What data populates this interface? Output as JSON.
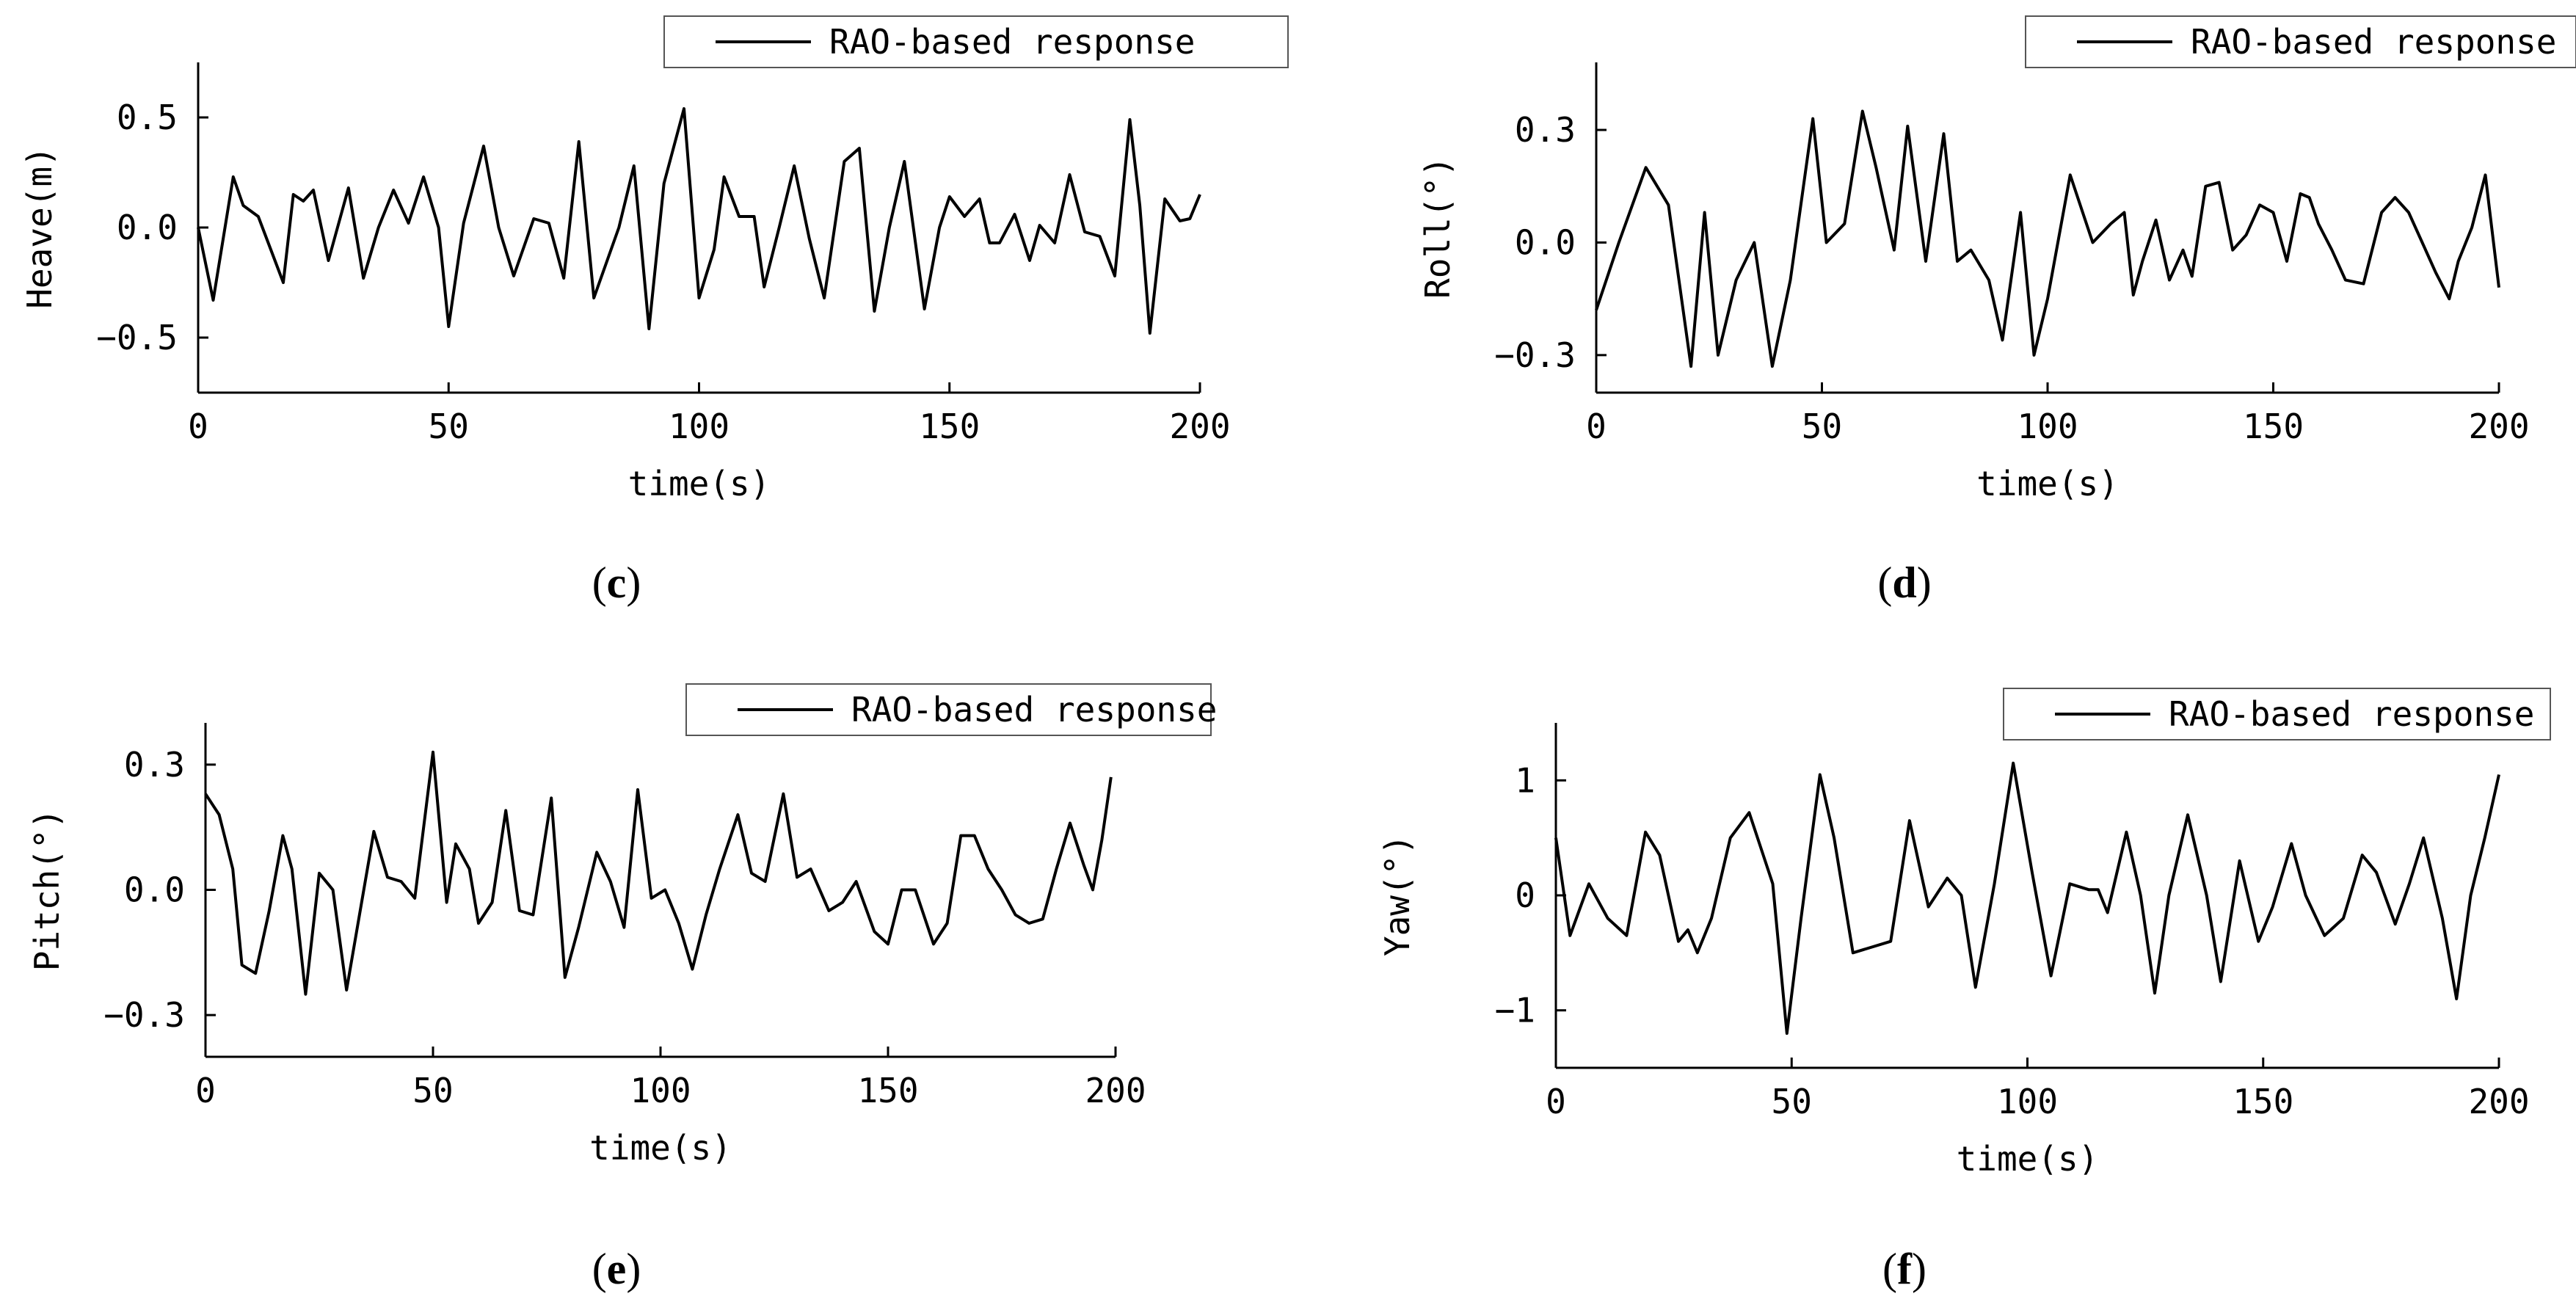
{
  "panels": [
    {
      "caption": "c",
      "chart_data": {
        "type": "line",
        "xlabel": "time(s)",
        "ylabel": "Heave(m)",
        "xlim": [
          0,
          200
        ],
        "ylim": [
          -0.75,
          0.75
        ],
        "xticks": [
          0,
          50,
          100,
          150,
          200
        ],
        "xtick_labels": [
          "0",
          "50",
          "100",
          "150",
          "200"
        ],
        "yticks": [
          0.5,
          0.0,
          -0.5
        ],
        "ytick_labels": [
          "0.5",
          "0.0",
          "−0.5"
        ],
        "series": [
          {
            "name": "RAO-based response",
            "x": [
              0,
              3,
              7,
              9,
              12,
              17,
              19,
              21,
              23,
              26,
              30,
              33,
              36,
              39,
              42,
              45,
              48,
              50,
              53,
              57,
              60,
              63,
              67,
              70,
              73,
              76,
              79,
              84,
              87,
              90,
              93,
              97,
              100,
              103,
              105,
              108,
              111,
              113,
              116,
              119,
              122,
              125,
              129,
              132,
              135,
              138,
              141,
              145,
              148,
              150,
              153,
              156,
              158,
              160,
              163,
              166,
              168,
              171,
              174,
              177,
              180,
              183,
              186,
              188,
              190,
              193,
              196,
              198,
              200
            ],
            "y": [
              0.0,
              -0.33,
              0.23,
              0.1,
              0.05,
              -0.25,
              0.15,
              0.12,
              0.17,
              -0.15,
              0.18,
              -0.23,
              0.0,
              0.17,
              0.02,
              0.23,
              0.0,
              -0.45,
              0.02,
              0.37,
              0.0,
              -0.22,
              0.04,
              0.02,
              -0.23,
              0.39,
              -0.32,
              0.0,
              0.28,
              -0.46,
              0.2,
              0.54,
              -0.32,
              -0.1,
              0.23,
              0.05,
              0.05,
              -0.27,
              0.0,
              0.28,
              -0.05,
              -0.32,
              0.3,
              0.36,
              -0.38,
              0.0,
              0.3,
              -0.37,
              0.0,
              0.14,
              0.05,
              0.13,
              -0.07,
              -0.07,
              0.06,
              -0.15,
              0.01,
              -0.07,
              0.24,
              -0.02,
              -0.04,
              -0.22,
              0.49,
              0.1,
              -0.48,
              0.13,
              0.03,
              0.04,
              0.15
            ]
          }
        ],
        "legend_position": "top-right"
      }
    },
    {
      "caption": "d",
      "chart_data": {
        "type": "line",
        "xlabel": "time(s)",
        "ylabel": "Roll(°)",
        "xlim": [
          0,
          200
        ],
        "ylim": [
          -0.4,
          0.48
        ],
        "xticks": [
          0,
          50,
          100,
          150,
          200
        ],
        "xtick_labels": [
          "0",
          "50",
          "100",
          "150",
          "200"
        ],
        "yticks": [
          0.3,
          0.0,
          -0.3
        ],
        "ytick_labels": [
          "0.3",
          "0.0",
          "−0.3"
        ],
        "series": [
          {
            "name": "RAO-based response",
            "x": [
              0,
              5,
              11,
              16,
              21,
              24,
              27,
              31,
              35,
              39,
              43,
              48,
              51,
              55,
              59,
              62,
              66,
              69,
              73,
              77,
              80,
              83,
              87,
              90,
              94,
              97,
              100,
              105,
              110,
              114,
              117,
              119,
              121,
              124,
              127,
              130,
              132,
              135,
              138,
              141,
              144,
              147,
              150,
              153,
              156,
              158,
              160,
              163,
              166,
              170,
              174,
              177,
              180,
              183,
              186,
              189,
              191,
              194,
              197,
              200
            ],
            "y": [
              -0.18,
              0.0,
              0.2,
              0.1,
              -0.33,
              0.08,
              -0.3,
              -0.1,
              0.0,
              -0.33,
              -0.1,
              0.33,
              0.0,
              0.05,
              0.35,
              0.2,
              -0.02,
              0.31,
              -0.05,
              0.29,
              -0.05,
              -0.02,
              -0.1,
              -0.26,
              0.08,
              -0.3,
              -0.15,
              0.18,
              0.0,
              0.05,
              0.08,
              -0.14,
              -0.05,
              0.06,
              -0.1,
              -0.02,
              -0.09,
              0.15,
              0.16,
              -0.02,
              0.02,
              0.1,
              0.08,
              -0.05,
              0.13,
              0.12,
              0.05,
              -0.02,
              -0.1,
              -0.11,
              0.08,
              0.12,
              0.08,
              0.0,
              -0.08,
              -0.15,
              -0.05,
              0.04,
              0.18,
              -0.12
            ]
          }
        ],
        "legend_position": "top-right"
      }
    },
    {
      "caption": "e",
      "chart_data": {
        "type": "line",
        "xlabel": "time(s)",
        "ylabel": "Pitch(°)",
        "xlim": [
          0,
          200
        ],
        "ylim": [
          -0.4,
          0.4
        ],
        "xticks": [
          0,
          50,
          100,
          150,
          200
        ],
        "xtick_labels": [
          "0",
          "50",
          "100",
          "150",
          "200"
        ],
        "yticks": [
          0.3,
          0.0,
          -0.3
        ],
        "ytick_labels": [
          "0.3",
          "0.0",
          "−0.3"
        ],
        "series": [
          {
            "name": "RAO-based response",
            "x": [
              0,
              3,
              6,
              8,
              11,
              14,
              17,
              19,
              22,
              25,
              28,
              31,
              34,
              37,
              40,
              43,
              46,
              50,
              53,
              55,
              58,
              60,
              63,
              66,
              69,
              72,
              76,
              79,
              82,
              86,
              89,
              92,
              95,
              98,
              101,
              104,
              107,
              110,
              113,
              117,
              120,
              123,
              127,
              130,
              133,
              137,
              140,
              143,
              147,
              150,
              153,
              156,
              160,
              163,
              166,
              169,
              172,
              175,
              178,
              181,
              184,
              187,
              190,
              193,
              195,
              197,
              199
            ],
            "y": [
              0.23,
              0.18,
              0.05,
              -0.18,
              -0.2,
              -0.05,
              0.13,
              0.05,
              -0.25,
              0.04,
              0.0,
              -0.24,
              -0.05,
              0.14,
              0.03,
              0.02,
              -0.02,
              0.33,
              -0.03,
              0.11,
              0.05,
              -0.08,
              -0.03,
              0.19,
              -0.05,
              -0.06,
              0.22,
              -0.21,
              -0.09,
              0.09,
              0.02,
              -0.09,
              0.24,
              -0.02,
              0.0,
              -0.08,
              -0.19,
              -0.06,
              0.05,
              0.18,
              0.04,
              0.02,
              0.23,
              0.03,
              0.05,
              -0.05,
              -0.03,
              0.02,
              -0.1,
              -0.13,
              0.0,
              0.0,
              -0.13,
              -0.08,
              0.13,
              0.13,
              0.05,
              0.0,
              -0.06,
              -0.08,
              -0.07,
              0.05,
              0.16,
              0.06,
              0.0,
              0.12,
              0.27
            ]
          }
        ],
        "legend_position": "top-right"
      }
    },
    {
      "caption": "f",
      "chart_data": {
        "type": "line",
        "xlabel": "time(s)",
        "ylabel": "Yaw(°)",
        "xlim": [
          0,
          200
        ],
        "ylim": [
          -1.5,
          1.5
        ],
        "xticks": [
          0,
          50,
          100,
          150,
          200
        ],
        "xtick_labels": [
          "0",
          "50",
          "100",
          "150",
          "200"
        ],
        "yticks": [
          1,
          0,
          -1
        ],
        "ytick_labels": [
          "1",
          "0",
          "−1"
        ],
        "series": [
          {
            "name": "RAO-based response",
            "x": [
              0,
              3,
              7,
              11,
              15,
              19,
              22,
              26,
              28,
              30,
              33,
              37,
              41,
              46,
              49,
              52,
              56,
              59,
              63,
              67,
              71,
              75,
              79,
              83,
              86,
              89,
              93,
              97,
              101,
              105,
              109,
              113,
              115,
              117,
              121,
              124,
              127,
              130,
              134,
              138,
              141,
              145,
              149,
              152,
              156,
              159,
              163,
              167,
              171,
              174,
              178,
              181,
              184,
              188,
              191,
              194,
              197,
              200
            ],
            "y": [
              0.5,
              -0.35,
              0.1,
              -0.2,
              -0.35,
              0.55,
              0.35,
              -0.4,
              -0.3,
              -0.5,
              -0.2,
              0.5,
              0.72,
              0.1,
              -1.2,
              -0.2,
              1.05,
              0.5,
              -0.5,
              -0.45,
              -0.4,
              0.65,
              -0.1,
              0.15,
              0.0,
              -0.8,
              0.1,
              1.15,
              0.2,
              -0.7,
              0.1,
              0.05,
              0.05,
              -0.15,
              0.55,
              0.0,
              -0.85,
              0.0,
              0.7,
              0.0,
              -0.75,
              0.3,
              -0.4,
              -0.1,
              0.45,
              0.0,
              -0.35,
              -0.2,
              0.35,
              0.2,
              -0.25,
              0.1,
              0.5,
              -0.2,
              -0.9,
              0.0,
              0.5,
              1.05
            ]
          }
        ],
        "legend_position": "top-right"
      }
    }
  ]
}
